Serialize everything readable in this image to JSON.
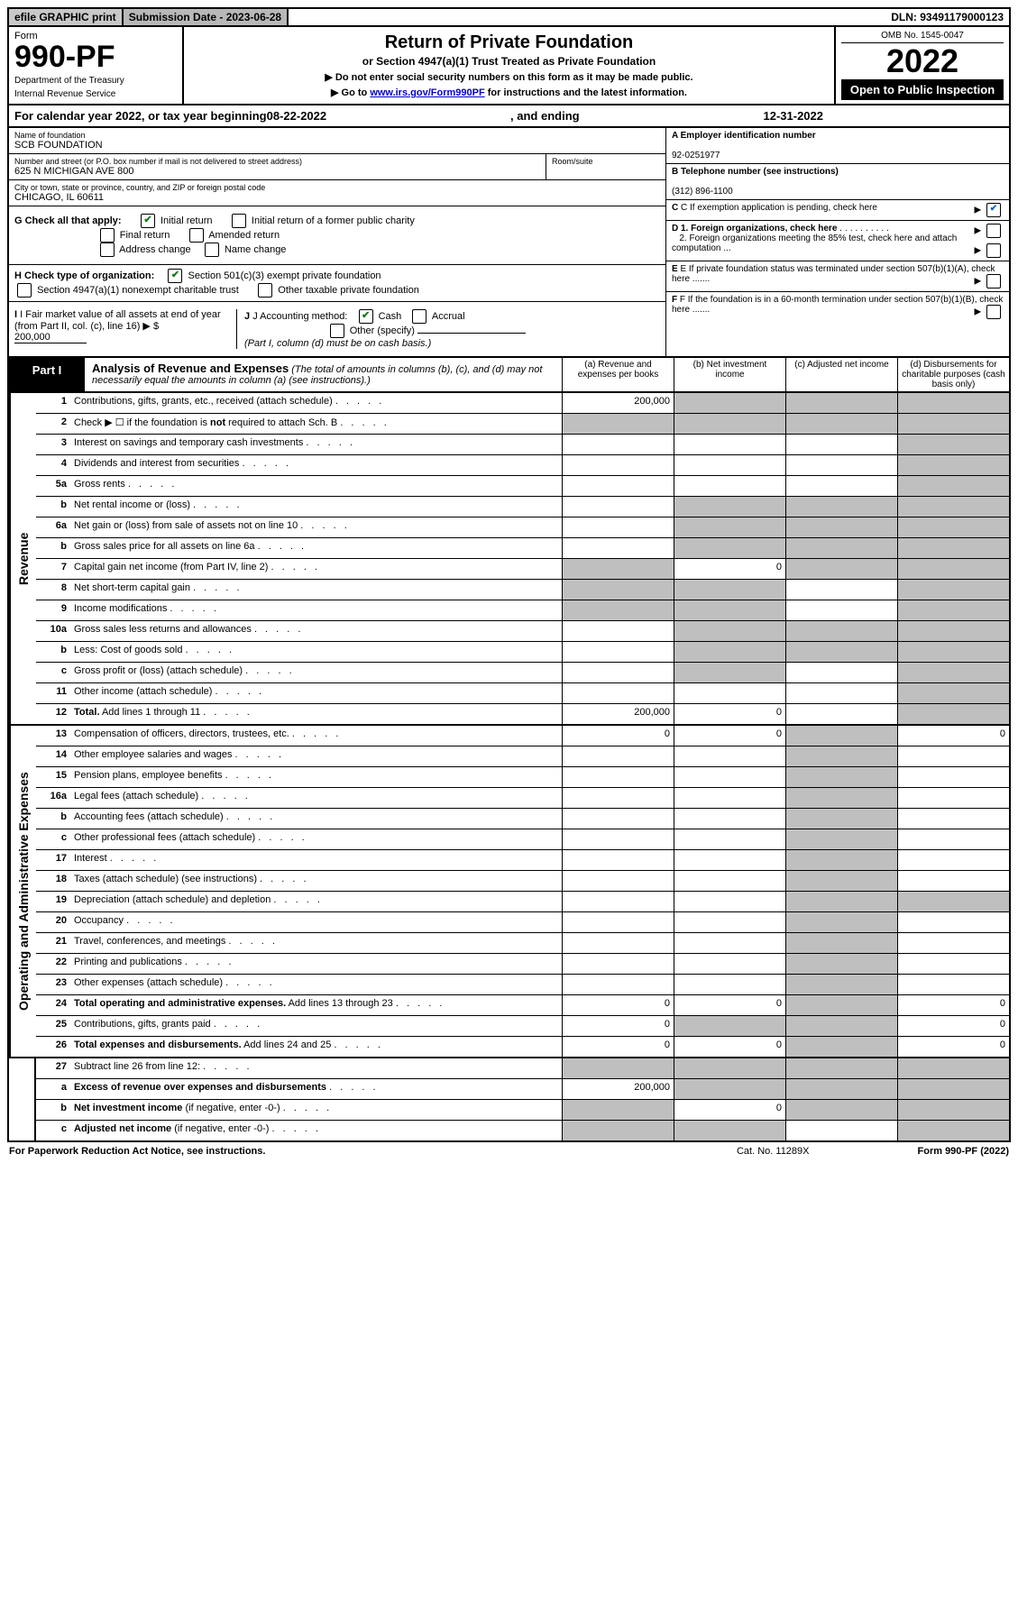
{
  "topbar": {
    "efile": "efile GRAPHIC print",
    "subdate_lbl": "Submission Date - 2023-06-28",
    "dln": "DLN: 93491179000123"
  },
  "header": {
    "form_word": "Form",
    "form_num": "990-PF",
    "dept": "Department of the Treasury",
    "irs": "Internal Revenue Service",
    "title": "Return of Private Foundation",
    "subtitle": "or Section 4947(a)(1) Trust Treated as Private Foundation",
    "instr1": "▶ Do not enter social security numbers on this form as it may be made public.",
    "instr2_pre": "▶ Go to ",
    "instr2_link": "www.irs.gov/Form990PF",
    "instr2_post": " for instructions and the latest information.",
    "omb": "OMB No. 1545-0047",
    "year": "2022",
    "open": "Open to Public Inspection"
  },
  "calyear": {
    "pre": "For calendar year 2022, or tax year beginning ",
    "begin": "08-22-2022",
    "mid": ", and ending ",
    "end": "12-31-2022"
  },
  "info": {
    "name_lbl": "Name of foundation",
    "name": "SCB FOUNDATION",
    "addr_lbl": "Number and street (or P.O. box number if mail is not delivered to street address)",
    "addr": "625 N MICHIGAN AVE 800",
    "room_lbl": "Room/suite",
    "city_lbl": "City or town, state or province, country, and ZIP or foreign postal code",
    "city": "CHICAGO, IL  60611",
    "a_lbl": "A Employer identification number",
    "a_val": "92-0251977",
    "b_lbl": "B Telephone number (see instructions)",
    "b_val": "(312) 896-1100",
    "c_lbl": "C If exemption application is pending, check here",
    "d1": "D 1. Foreign organizations, check here",
    "d2": "2. Foreign organizations meeting the 85% test, check here and attach computation ...",
    "e_lbl": "E If private foundation status was terminated under section 507(b)(1)(A), check here .......",
    "f_lbl": "F If the foundation is in a 60-month termination under section 507(b)(1)(B), check here .......",
    "g_lbl": "G Check all that apply:",
    "g_opts": [
      "Initial return",
      "Initial return of a former public charity",
      "Final return",
      "Amended return",
      "Address change",
      "Name change"
    ],
    "h_lbl": "H Check type of organization:",
    "h1": "Section 501(c)(3) exempt private foundation",
    "h2": "Section 4947(a)(1) nonexempt charitable trust",
    "h3": "Other taxable private foundation",
    "i_lbl": "I Fair market value of all assets at end of year (from Part II, col. (c), line 16)",
    "i_val": "200,000",
    "j_lbl": "J Accounting method:",
    "j_cash": "Cash",
    "j_accr": "Accrual",
    "j_other": "Other (specify)",
    "j_note": "(Part I, column (d) must be on cash basis.)"
  },
  "part1": {
    "label": "Part I",
    "title": "Analysis of Revenue and Expenses",
    "note": "(The total of amounts in columns (b), (c), and (d) may not necessarily equal the amounts in column (a) (see instructions).)",
    "cols": {
      "a": "(a) Revenue and expenses per books",
      "b": "(b) Net investment income",
      "c": "(c) Adjusted net income",
      "d": "(d) Disbursements for charitable purposes (cash basis only)"
    }
  },
  "revenue_label": "Revenue",
  "expense_label": "Operating and Administrative Expenses",
  "rows": {
    "r1": {
      "n": "1",
      "t": "Contributions, gifts, grants, etc., received (attach schedule)",
      "a": "200,000"
    },
    "r2": {
      "n": "2",
      "t": "Check ▶ ☐ if the foundation is <b>not</b> required to attach Sch. B"
    },
    "r3": {
      "n": "3",
      "t": "Interest on savings and temporary cash investments"
    },
    "r4": {
      "n": "4",
      "t": "Dividends and interest from securities"
    },
    "r5a": {
      "n": "5a",
      "t": "Gross rents"
    },
    "r5b": {
      "n": "b",
      "t": "Net rental income or (loss)"
    },
    "r6a": {
      "n": "6a",
      "t": "Net gain or (loss) from sale of assets not on line 10"
    },
    "r6b": {
      "n": "b",
      "t": "Gross sales price for all assets on line 6a"
    },
    "r7": {
      "n": "7",
      "t": "Capital gain net income (from Part IV, line 2)",
      "b": "0"
    },
    "r8": {
      "n": "8",
      "t": "Net short-term capital gain"
    },
    "r9": {
      "n": "9",
      "t": "Income modifications"
    },
    "r10a": {
      "n": "10a",
      "t": "Gross sales less returns and allowances"
    },
    "r10b": {
      "n": "b",
      "t": "Less: Cost of goods sold"
    },
    "r10c": {
      "n": "c",
      "t": "Gross profit or (loss) (attach schedule)"
    },
    "r11": {
      "n": "11",
      "t": "Other income (attach schedule)"
    },
    "r12": {
      "n": "12",
      "t": "<b>Total.</b> Add lines 1 through 11",
      "a": "200,000",
      "b": "0"
    },
    "r13": {
      "n": "13",
      "t": "Compensation of officers, directors, trustees, etc.",
      "a": "0",
      "b": "0",
      "d": "0"
    },
    "r14": {
      "n": "14",
      "t": "Other employee salaries and wages"
    },
    "r15": {
      "n": "15",
      "t": "Pension plans, employee benefits"
    },
    "r16a": {
      "n": "16a",
      "t": "Legal fees (attach schedule)"
    },
    "r16b": {
      "n": "b",
      "t": "Accounting fees (attach schedule)"
    },
    "r16c": {
      "n": "c",
      "t": "Other professional fees (attach schedule)"
    },
    "r17": {
      "n": "17",
      "t": "Interest"
    },
    "r18": {
      "n": "18",
      "t": "Taxes (attach schedule) (see instructions)"
    },
    "r19": {
      "n": "19",
      "t": "Depreciation (attach schedule) and depletion"
    },
    "r20": {
      "n": "20",
      "t": "Occupancy"
    },
    "r21": {
      "n": "21",
      "t": "Travel, conferences, and meetings"
    },
    "r22": {
      "n": "22",
      "t": "Printing and publications"
    },
    "r23": {
      "n": "23",
      "t": "Other expenses (attach schedule)"
    },
    "r24": {
      "n": "24",
      "t": "<b>Total operating and administrative expenses.</b> Add lines 13 through 23",
      "a": "0",
      "b": "0",
      "d": "0"
    },
    "r25": {
      "n": "25",
      "t": "Contributions, gifts, grants paid",
      "a": "0",
      "d": "0"
    },
    "r26": {
      "n": "26",
      "t": "<b>Total expenses and disbursements.</b> Add lines 24 and 25",
      "a": "0",
      "b": "0",
      "d": "0"
    },
    "r27": {
      "n": "27",
      "t": "Subtract line 26 from line 12:"
    },
    "r27a": {
      "n": "a",
      "t": "<b>Excess of revenue over expenses and disbursements</b>",
      "a": "200,000"
    },
    "r27b": {
      "n": "b",
      "t": "<b>Net investment income</b> (if negative, enter -0-)",
      "b": "0"
    },
    "r27c": {
      "n": "c",
      "t": "<b>Adjusted net income</b> (if negative, enter -0-)"
    }
  },
  "footer": {
    "left": "For Paperwork Reduction Act Notice, see instructions.",
    "mid": "Cat. No. 11289X",
    "right": "Form 990-PF (2022)"
  }
}
